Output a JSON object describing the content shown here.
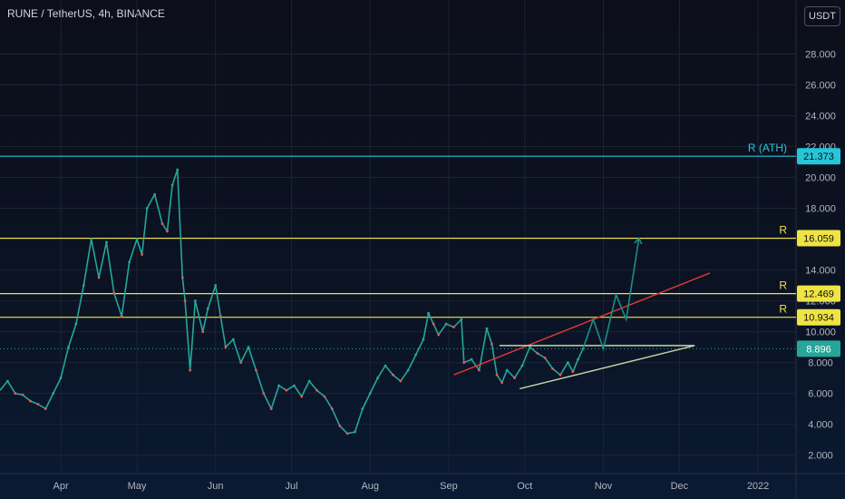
{
  "chart_data": {
    "type": "line",
    "title": "RUNE / TetherUS, 4h, BINANCE",
    "unit": "USDT",
    "x_range": [
      "2021-03-08",
      "2022-01-16"
    ],
    "ylim": [
      0.8,
      31.5
    ],
    "y_ticks": [
      2,
      4,
      6,
      8,
      10,
      12,
      14,
      16,
      18,
      20,
      22,
      24,
      26,
      28
    ],
    "y_tick_labels": [
      "2.000",
      "4.000",
      "6.000",
      "8.000",
      "10.000",
      "12.000",
      "14.000",
      "16.000",
      "18.000",
      "20.000",
      "22.000",
      "24.000",
      "26.000",
      "28.000"
    ],
    "x_ticks": [
      {
        "label": "Apr",
        "date": "2021-04-01"
      },
      {
        "label": "May",
        "date": "2021-05-01"
      },
      {
        "label": "Jun",
        "date": "2021-06-01"
      },
      {
        "label": "Jul",
        "date": "2021-07-01"
      },
      {
        "label": "Aug",
        "date": "2021-08-01"
      },
      {
        "label": "Sep",
        "date": "2021-09-01"
      },
      {
        "label": "Oct",
        "date": "2021-10-01"
      },
      {
        "label": "Nov",
        "date": "2021-11-01"
      },
      {
        "label": "Dec",
        "date": "2021-12-01"
      },
      {
        "label": "2022",
        "date": "2022-01-01"
      }
    ],
    "series": [
      {
        "points": [
          [
            "2021-03-08",
            6.2
          ],
          [
            "2021-03-11",
            6.8
          ],
          [
            "2021-03-14",
            6.0
          ],
          [
            "2021-03-17",
            5.9
          ],
          [
            "2021-03-20",
            5.5
          ],
          [
            "2021-03-23",
            5.3
          ],
          [
            "2021-03-26",
            5.0
          ],
          [
            "2021-03-29",
            6.0
          ],
          [
            "2021-04-01",
            7.0
          ],
          [
            "2021-04-04",
            9.0
          ],
          [
            "2021-04-07",
            10.5
          ],
          [
            "2021-04-10",
            13.0
          ],
          [
            "2021-04-13",
            16.0
          ],
          [
            "2021-04-16",
            13.5
          ],
          [
            "2021-04-19",
            15.8
          ],
          [
            "2021-04-22",
            12.5
          ],
          [
            "2021-04-25",
            11.0
          ],
          [
            "2021-04-28",
            14.5
          ],
          [
            "2021-05-01",
            16.0
          ],
          [
            "2021-05-03",
            15.0
          ],
          [
            "2021-05-05",
            18.0
          ],
          [
            "2021-05-08",
            18.9
          ],
          [
            "2021-05-11",
            17.0
          ],
          [
            "2021-05-13",
            16.5
          ],
          [
            "2021-05-15",
            19.5
          ],
          [
            "2021-05-17",
            20.5
          ],
          [
            "2021-05-19",
            13.5
          ],
          [
            "2021-05-20",
            12.0
          ],
          [
            "2021-05-22",
            7.5
          ],
          [
            "2021-05-24",
            12.0
          ],
          [
            "2021-05-27",
            10.0
          ],
          [
            "2021-05-29",
            11.5
          ],
          [
            "2021-06-01",
            13.0
          ],
          [
            "2021-06-03",
            11.0
          ],
          [
            "2021-06-05",
            9.0
          ],
          [
            "2021-06-08",
            9.5
          ],
          [
            "2021-06-11",
            8.0
          ],
          [
            "2021-06-14",
            9.0
          ],
          [
            "2021-06-17",
            7.5
          ],
          [
            "2021-06-20",
            6.0
          ],
          [
            "2021-06-23",
            5.0
          ],
          [
            "2021-06-26",
            6.5
          ],
          [
            "2021-06-29",
            6.2
          ],
          [
            "2021-07-02",
            6.5
          ],
          [
            "2021-07-05",
            5.8
          ],
          [
            "2021-07-08",
            6.8
          ],
          [
            "2021-07-11",
            6.2
          ],
          [
            "2021-07-14",
            5.8
          ],
          [
            "2021-07-17",
            5.0
          ],
          [
            "2021-07-20",
            3.9
          ],
          [
            "2021-07-23",
            3.4
          ],
          [
            "2021-07-26",
            3.5
          ],
          [
            "2021-07-29",
            5.0
          ],
          [
            "2021-08-01",
            6.0
          ],
          [
            "2021-08-04",
            7.0
          ],
          [
            "2021-08-07",
            7.8
          ],
          [
            "2021-08-10",
            7.2
          ],
          [
            "2021-08-13",
            6.8
          ],
          [
            "2021-08-16",
            7.5
          ],
          [
            "2021-08-19",
            8.5
          ],
          [
            "2021-08-22",
            9.5
          ],
          [
            "2021-08-24",
            11.2
          ],
          [
            "2021-08-26",
            10.5
          ],
          [
            "2021-08-28",
            9.8
          ],
          [
            "2021-08-31",
            10.5
          ],
          [
            "2021-09-03",
            10.3
          ],
          [
            "2021-09-06",
            10.8
          ],
          [
            "2021-09-07",
            8.0
          ],
          [
            "2021-09-10",
            8.2
          ],
          [
            "2021-09-13",
            7.5
          ],
          [
            "2021-09-16",
            10.2
          ],
          [
            "2021-09-18",
            9.2
          ],
          [
            "2021-09-20",
            7.2
          ],
          [
            "2021-09-22",
            6.7
          ],
          [
            "2021-09-24",
            7.5
          ],
          [
            "2021-09-27",
            7.0
          ],
          [
            "2021-09-30",
            7.8
          ],
          [
            "2021-10-03",
            9.0
          ],
          [
            "2021-10-06",
            8.6
          ],
          [
            "2021-10-09",
            8.3
          ],
          [
            "2021-10-12",
            7.6
          ],
          [
            "2021-10-15",
            7.2
          ],
          [
            "2021-10-18",
            8.0
          ],
          [
            "2021-10-20",
            7.4
          ],
          [
            "2021-10-22",
            8.2
          ],
          [
            "2021-10-24",
            8.9
          ]
        ]
      }
    ],
    "levels": [
      {
        "label": "R (ATH)",
        "value": 21.373,
        "price_label": "21.373",
        "color": "#26c6da"
      },
      {
        "label": "R",
        "value": 16.059,
        "price_label": "16.059",
        "color": "#f0e442"
      },
      {
        "label": "R",
        "value": 12.469,
        "price_label": "12.469",
        "color": "#f0e442"
      },
      {
        "label": "R",
        "value": 10.934,
        "price_label": "10.934",
        "color": "#f0e442"
      }
    ],
    "last_price": {
      "value": 8.896,
      "price_label": "8.896",
      "color": "#26a69a"
    },
    "trendlines": [
      {
        "color": "#e53935",
        "from": [
          "2021-09-03",
          7.2
        ],
        "to": [
          "2021-12-13",
          13.8
        ]
      },
      {
        "color": "#c8d3a8",
        "from": [
          "2021-09-21",
          9.1
        ],
        "to": [
          "2021-12-07",
          9.1
        ]
      },
      {
        "color": "#c8d3a8",
        "from": [
          "2021-09-29",
          6.3
        ],
        "to": [
          "2021-12-07",
          9.1
        ]
      }
    ],
    "projection": {
      "color": "#1a8f86",
      "points": [
        [
          "2021-10-24",
          8.9
        ],
        [
          "2021-10-28",
          10.8
        ],
        [
          "2021-11-01",
          8.9
        ],
        [
          "2021-11-06",
          12.4
        ],
        [
          "2021-11-10",
          10.8
        ],
        [
          "2021-11-15",
          16.0
        ]
      ]
    }
  }
}
